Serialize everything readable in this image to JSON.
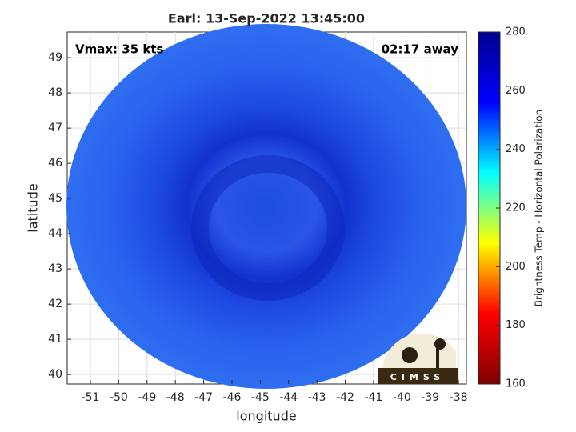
{
  "chart_data": {
    "type": "image",
    "title": "Earl: 13-Sep-2022 13:45:00",
    "annotations": [
      "Vmax: 35 kts",
      "02:17 away"
    ],
    "x_label": "longitude",
    "y_label": "latitude",
    "xlim": [
      -51.82,
      -37.72
    ],
    "ylim": [
      39.73,
      49.73
    ],
    "xticks": [
      -51,
      -50,
      -49,
      -48,
      -47,
      -46,
      -45,
      -44,
      -43,
      -42,
      -41,
      -40,
      -39,
      -38
    ],
    "yticks": [
      40,
      41,
      42,
      43,
      44,
      45,
      46,
      47,
      48,
      49
    ],
    "grid": true,
    "colorbar": {
      "label": "Brightness Temp - Horizontal Polarization",
      "lim": [
        160,
        280
      ],
      "ticks": [
        160,
        180,
        200,
        220,
        240,
        260,
        280
      ],
      "colors": [
        "#800000",
        "#ff0000",
        "#ffff00",
        "#00ffff",
        "#0000ff",
        "#00008f"
      ]
    },
    "logo": "CIMSS"
  }
}
